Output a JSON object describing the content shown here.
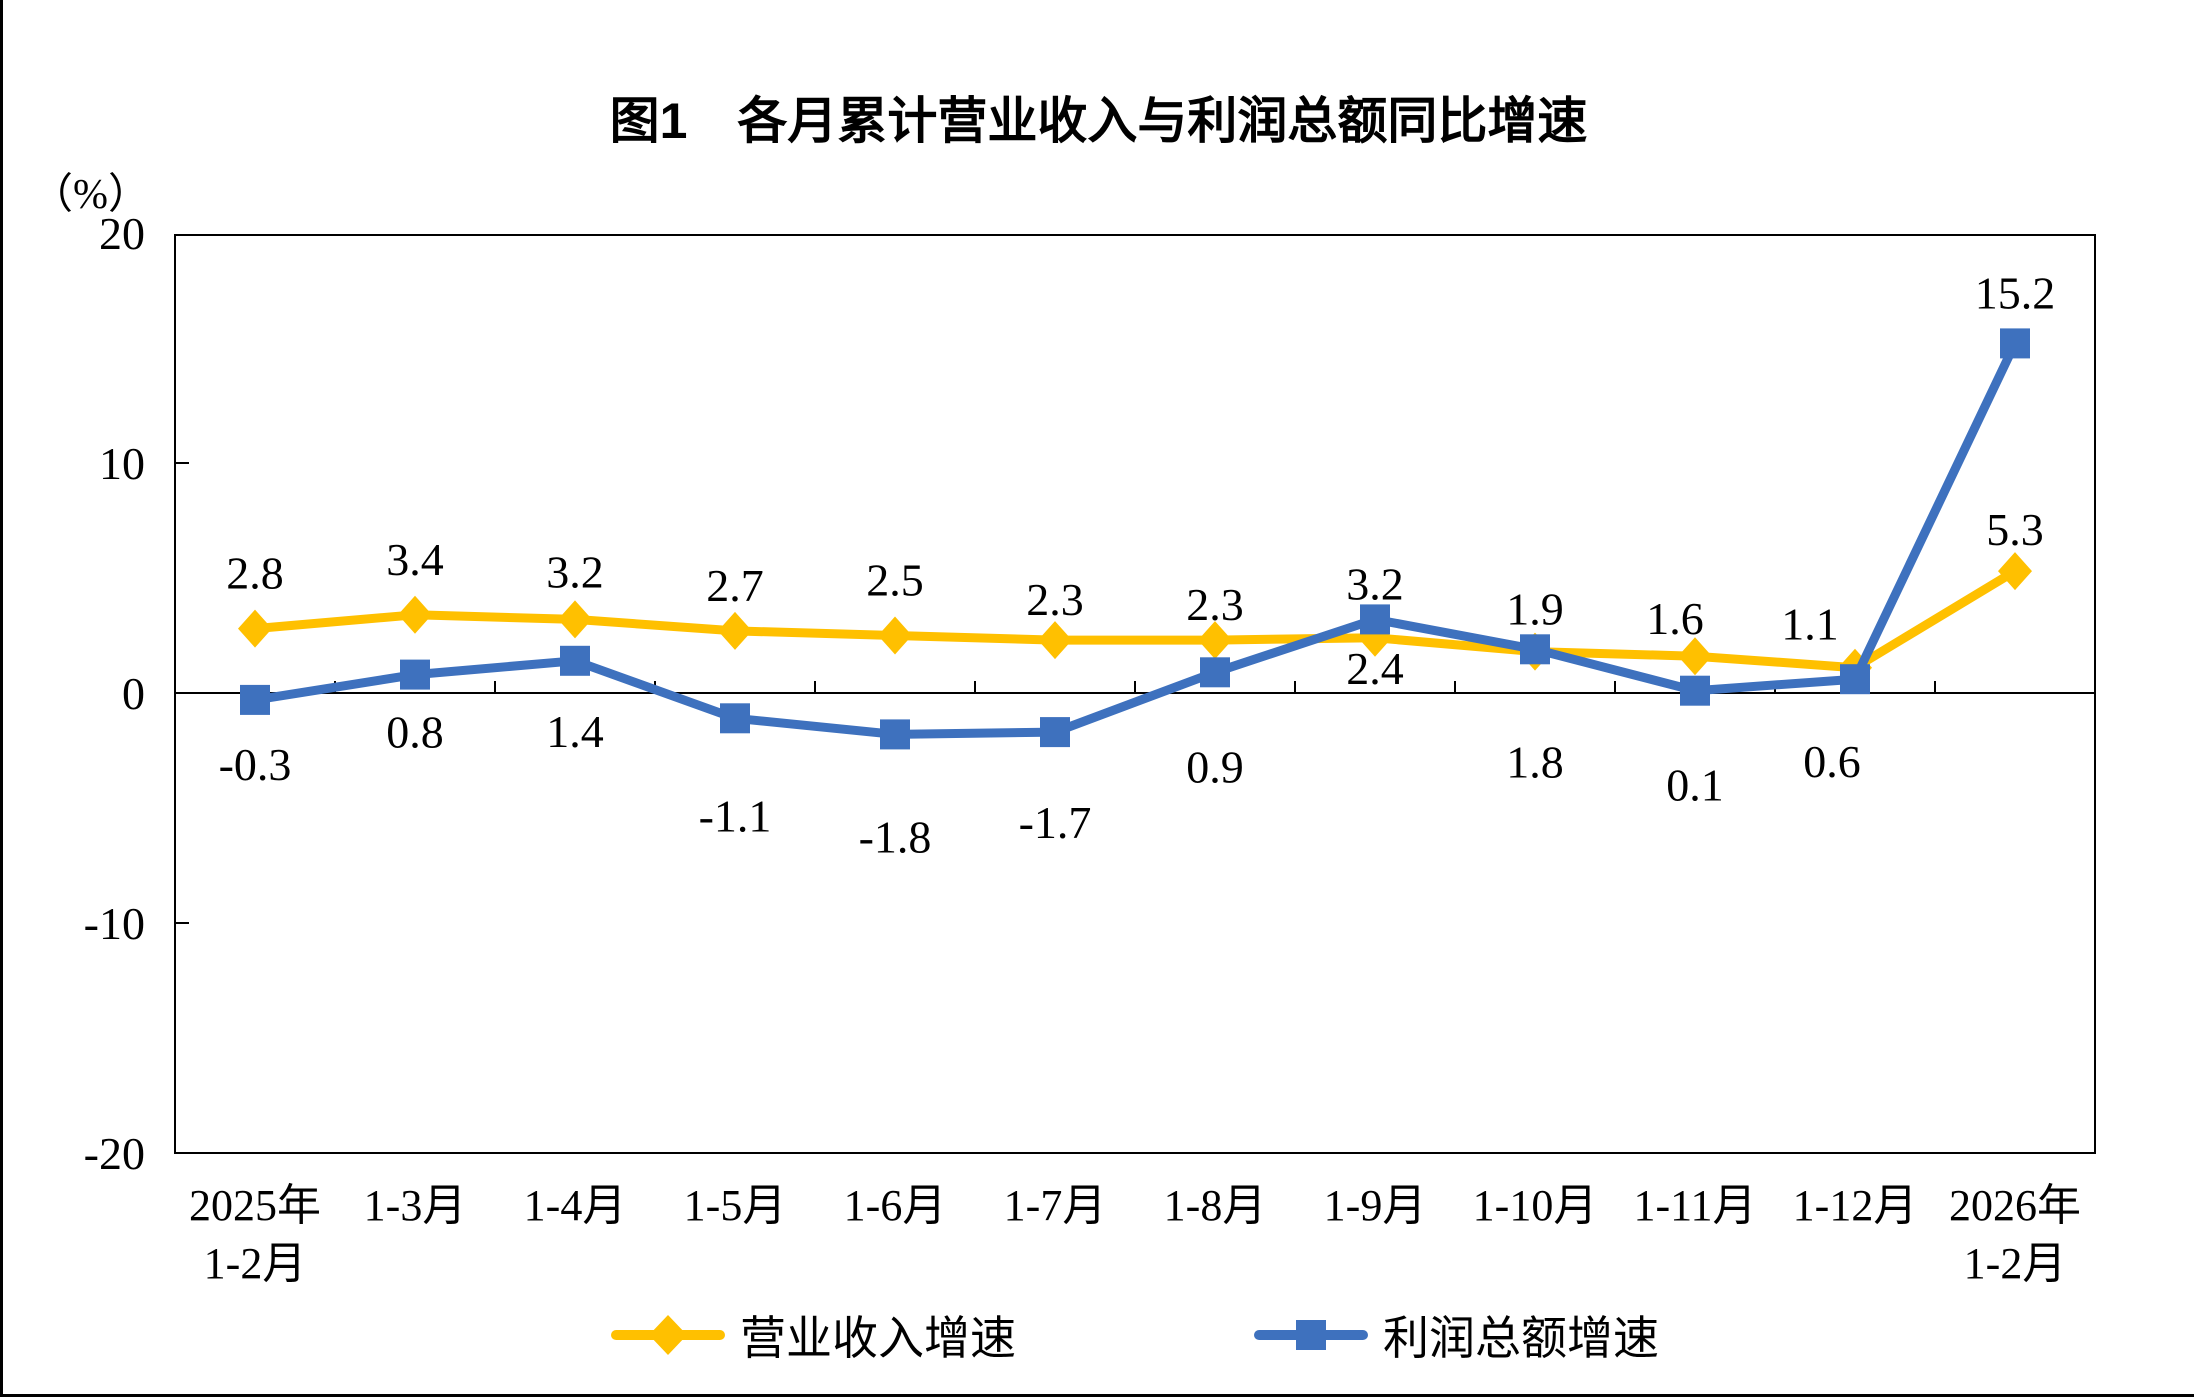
{
  "page": {
    "title": "图1　各月累计营业收入与利润总额同比增速",
    "y_axis_unit": "（%）"
  },
  "chart_data": {
    "type": "line",
    "title": "图1　各月累计营业收入与利润总额同比增速",
    "y_axis_unit": "（%）",
    "ylim": [
      -20,
      20
    ],
    "y_ticks": [
      20,
      10,
      0,
      -10,
      -20
    ],
    "grid": false,
    "legend_position": "bottom",
    "categories": [
      "2025年\n1-2月",
      "1-3月",
      "1-4月",
      "1-5月",
      "1-6月",
      "1-7月",
      "1-8月",
      "1-9月",
      "1-10月",
      "1-11月",
      "1-12月",
      "2026年\n1-2月"
    ],
    "series": [
      {
        "key": "revenue",
        "name": "营业收入增速",
        "color": "#FFC000",
        "marker": "diamond",
        "values": [
          2.8,
          3.4,
          3.2,
          2.7,
          2.5,
          2.3,
          2.3,
          2.4,
          1.8,
          1.6,
          1.1,
          5.3
        ],
        "label_pos": [
          "above",
          "above",
          "above",
          "above",
          "above",
          "above",
          "above",
          "below",
          "below",
          "above",
          "above",
          "above"
        ],
        "label_dx": [
          0,
          0,
          0,
          0,
          0,
          0,
          0,
          0,
          0,
          -20,
          -45,
          0
        ],
        "label_dy": [
          0,
          0,
          8,
          10,
          0,
          15,
          20,
          -52,
          28,
          18,
          12,
          14
        ]
      },
      {
        "key": "profit",
        "name": "利润总额增速",
        "color": "#3E71BE",
        "marker": "square",
        "values": [
          -0.3,
          0.8,
          1.4,
          -1.1,
          -1.8,
          -1.7,
          0.9,
          3.2,
          1.9,
          0.1,
          0.6,
          15.2
        ],
        "label_pos": [
          "below",
          "below",
          "below",
          "below",
          "below",
          "below",
          "below",
          "above",
          "above",
          "below",
          "below",
          "above"
        ],
        "label_dx": [
          0,
          0,
          0,
          0,
          0,
          0,
          0,
          0,
          0,
          0,
          -23,
          0
        ],
        "label_dy": [
          -18,
          -25,
          -12,
          15,
          20,
          8,
          12,
          20,
          15,
          12,
          0,
          5
        ]
      }
    ]
  }
}
